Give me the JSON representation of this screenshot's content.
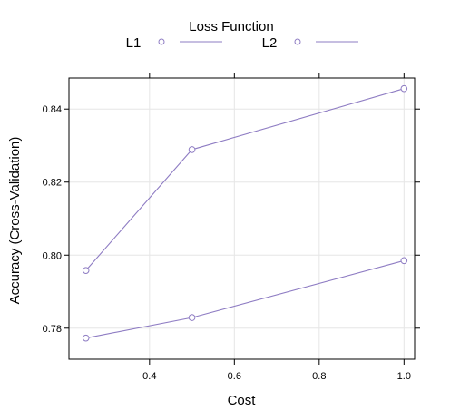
{
  "chart_data": {
    "type": "line",
    "xlabel": "Cost",
    "ylabel": "Accuracy (Cross-Validation)",
    "xlim": [
      0.21,
      1.025
    ],
    "ylim": [
      0.7715,
      0.8485
    ],
    "x_ticks": [
      0.4,
      0.6,
      0.8,
      1.0
    ],
    "x_tick_labels": [
      "0.4",
      "0.6",
      "0.8",
      "1.0"
    ],
    "y_ticks": [
      0.78,
      0.8,
      0.82,
      0.84
    ],
    "y_tick_labels": [
      "0.78",
      "0.80",
      "0.82",
      "0.84"
    ],
    "grid": true,
    "legend": {
      "title": "Loss Function",
      "placement": "top"
    },
    "series": [
      {
        "name": "L1",
        "x": [
          0.25,
          0.5,
          1.0
        ],
        "y": [
          0.7958,
          0.8289,
          0.8456
        ],
        "color": "#8E7CC3"
      },
      {
        "name": "L2",
        "x": [
          0.25,
          0.5,
          1.0
        ],
        "y": [
          0.7773,
          0.7829,
          0.7985
        ],
        "color": "#8E7CC3"
      }
    ]
  }
}
